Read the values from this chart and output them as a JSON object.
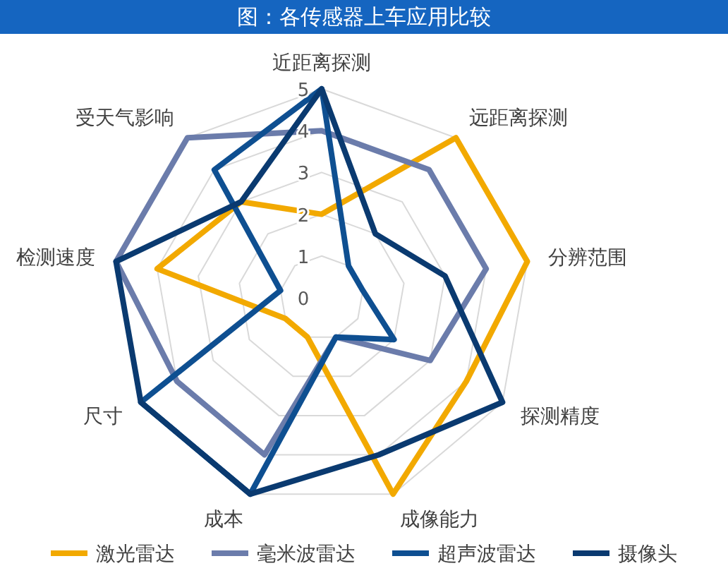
{
  "chart_data": {
    "type": "radar",
    "title": "图：各传感器上车应用比较",
    "categories": [
      "近距离探测",
      "远距离探测",
      "分辨范围",
      "探测精度",
      "成像能力",
      "成本",
      "尺寸",
      "检测速度",
      "受天气影响"
    ],
    "series": [
      {
        "name": "激光雷达",
        "color": "#f2a900",
        "values": [
          2,
          5,
          5,
          4,
          5,
          1,
          1,
          4,
          3
        ]
      },
      {
        "name": "毫米波雷达",
        "color": "#6b7cab",
        "values": [
          4,
          4,
          4,
          3,
          1,
          4,
          4,
          5,
          5
        ]
      },
      {
        "name": "超声波雷达",
        "color": "#0e4f91",
        "values": [
          5,
          1,
          1,
          2,
          1,
          5,
          5,
          1,
          4
        ]
      },
      {
        "name": "摄像头",
        "color": "#0a3a70",
        "values": [
          5,
          2,
          3,
          5,
          4,
          5,
          5,
          5,
          3
        ]
      }
    ],
    "ylim": [
      0,
      5
    ],
    "yticks": [
      0,
      1,
      2,
      3,
      4,
      5
    ],
    "grid": true,
    "legend": "bottom",
    "marker": "none"
  }
}
